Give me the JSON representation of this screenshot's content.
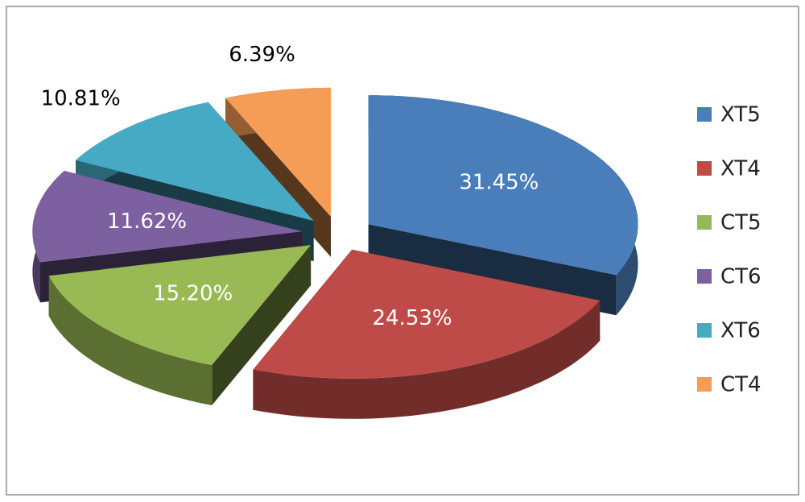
{
  "chart_data": {
    "type": "pie3d",
    "categories": [
      "XT5",
      "XT4",
      "CT5",
      "CT6",
      "XT6",
      "CT4"
    ],
    "values": [
      31.45,
      24.53,
      15.2,
      11.62,
      10.81,
      6.39
    ],
    "value_labels": [
      "31.45%",
      "24.53%",
      "15.20%",
      "11.62%",
      "10.81%",
      "6.39%"
    ],
    "colors": [
      "#4a7ebb",
      "#be4b48",
      "#98b954",
      "#7d60a0",
      "#46aac5",
      "#f59d56"
    ],
    "legend": "right"
  }
}
